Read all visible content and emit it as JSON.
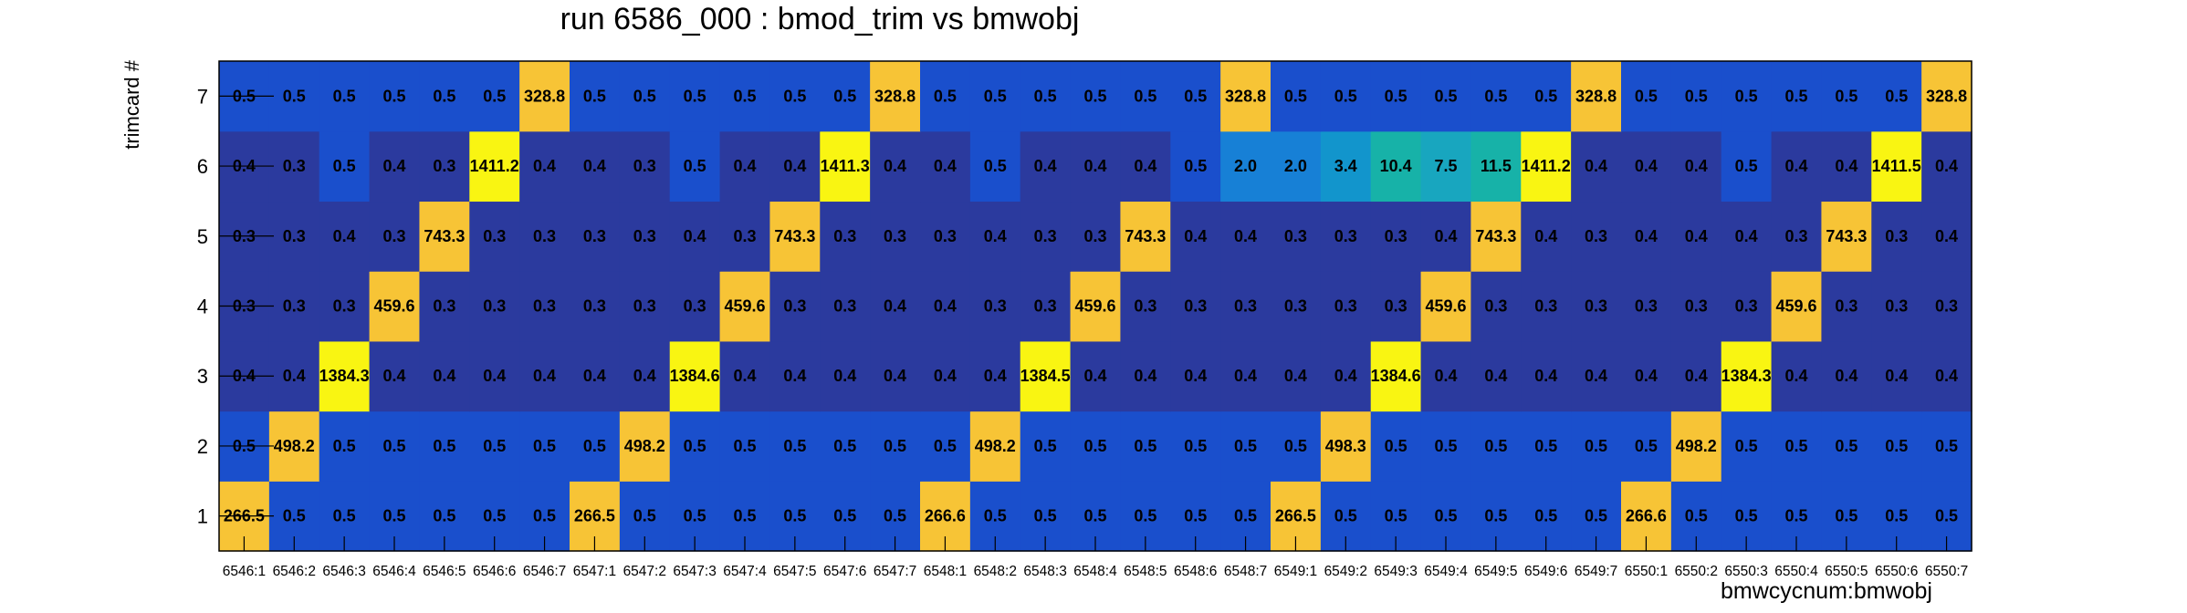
{
  "chart_data": {
    "type": "heatmap",
    "title": "run 6586_000 : bmod_trim vs bmwobj",
    "xlabel": "bmwcycnum:bmwobj",
    "ylabel": "trimcard #",
    "categories": [
      "6546:1",
      "6546:2",
      "6546:3",
      "6546:4",
      "6546:5",
      "6546:6",
      "6546:7",
      "6547:1",
      "6547:2",
      "6547:3",
      "6547:4",
      "6547:5",
      "6547:6",
      "6547:7",
      "6548:1",
      "6548:2",
      "6548:3",
      "6548:4",
      "6548:5",
      "6548:6",
      "6548:7",
      "6549:1",
      "6549:2",
      "6549:3",
      "6549:4",
      "6549:5",
      "6549:6",
      "6549:7",
      "6550:1",
      "6550:2",
      "6550:3",
      "6550:4",
      "6550:5",
      "6550:6",
      "6550:7"
    ],
    "y_categories": [
      "1",
      "2",
      "3",
      "4",
      "5",
      "6",
      "7"
    ],
    "values": [
      [
        266.5,
        0.5,
        0.5,
        0.5,
        0.5,
        0.5,
        0.5,
        266.5,
        0.5,
        0.5,
        0.5,
        0.5,
        0.5,
        0.5,
        266.6,
        0.5,
        0.5,
        0.5,
        0.5,
        0.5,
        0.5,
        266.5,
        0.5,
        0.5,
        0.5,
        0.5,
        0.5,
        0.5,
        266.6,
        0.5,
        0.5,
        0.5,
        0.5,
        0.5,
        0.5
      ],
      [
        0.5,
        498.2,
        0.5,
        0.5,
        0.5,
        0.5,
        0.5,
        0.5,
        498.2,
        0.5,
        0.5,
        0.5,
        0.5,
        0.5,
        0.5,
        498.2,
        0.5,
        0.5,
        0.5,
        0.5,
        0.5,
        0.5,
        498.3,
        0.5,
        0.5,
        0.5,
        0.5,
        0.5,
        0.5,
        498.2,
        0.5,
        0.5,
        0.5,
        0.5,
        0.5
      ],
      [
        0.4,
        0.4,
        1384.3,
        0.4,
        0.4,
        0.4,
        0.4,
        0.4,
        0.4,
        1384.6,
        0.4,
        0.4,
        0.4,
        0.4,
        0.4,
        0.4,
        1384.5,
        0.4,
        0.4,
        0.4,
        0.4,
        0.4,
        0.4,
        1384.6,
        0.4,
        0.4,
        0.4,
        0.4,
        0.4,
        0.4,
        1384.3,
        0.4,
        0.4,
        0.4,
        0.4
      ],
      [
        0.3,
        0.3,
        0.3,
        459.6,
        0.3,
        0.3,
        0.3,
        0.3,
        0.3,
        0.3,
        459.6,
        0.3,
        0.3,
        0.4,
        0.4,
        0.3,
        0.3,
        459.6,
        0.3,
        0.3,
        0.3,
        0.3,
        0.3,
        0.3,
        459.6,
        0.3,
        0.3,
        0.3,
        0.3,
        0.3,
        0.3,
        459.6,
        0.3,
        0.3,
        0.3
      ],
      [
        0.3,
        0.3,
        0.4,
        0.3,
        743.3,
        0.3,
        0.3,
        0.3,
        0.3,
        0.4,
        0.3,
        743.3,
        0.3,
        0.3,
        0.3,
        0.4,
        0.3,
        0.3,
        743.3,
        0.4,
        0.4,
        0.3,
        0.3,
        0.3,
        0.4,
        743.3,
        0.4,
        0.3,
        0.4,
        0.4,
        0.4,
        0.3,
        743.3,
        0.3,
        0.4
      ],
      [
        0.4,
        0.3,
        0.5,
        0.4,
        0.3,
        1411.2,
        0.4,
        0.4,
        0.3,
        0.5,
        0.4,
        0.4,
        1411.3,
        0.4,
        0.4,
        0.5,
        0.4,
        0.4,
        0.4,
        0.5,
        2.0,
        2.0,
        3.4,
        10.4,
        7.5,
        11.5,
        1411.2,
        0.4,
        0.4,
        0.4,
        0.5,
        0.4,
        0.4,
        1411.5,
        0.4
      ],
      [
        0.5,
        0.5,
        0.5,
        0.5,
        0.5,
        0.5,
        328.8,
        0.5,
        0.5,
        0.5,
        0.5,
        0.5,
        0.5,
        328.8,
        0.5,
        0.5,
        0.5,
        0.5,
        0.5,
        0.5,
        328.8,
        0.5,
        0.5,
        0.5,
        0.5,
        0.5,
        0.5,
        328.8,
        0.5,
        0.5,
        0.5,
        0.5,
        0.5,
        0.5,
        328.8
      ]
    ],
    "colors": {
      "low": "#2b3a9e",
      "mid": "#1a4fcc",
      "high": "#f7c436",
      "peak": "#f9f512",
      "c2": "#1780d6",
      "c3": "#1295cc",
      "c7": "#18a6bf",
      "c10": "#17b2a8"
    }
  }
}
